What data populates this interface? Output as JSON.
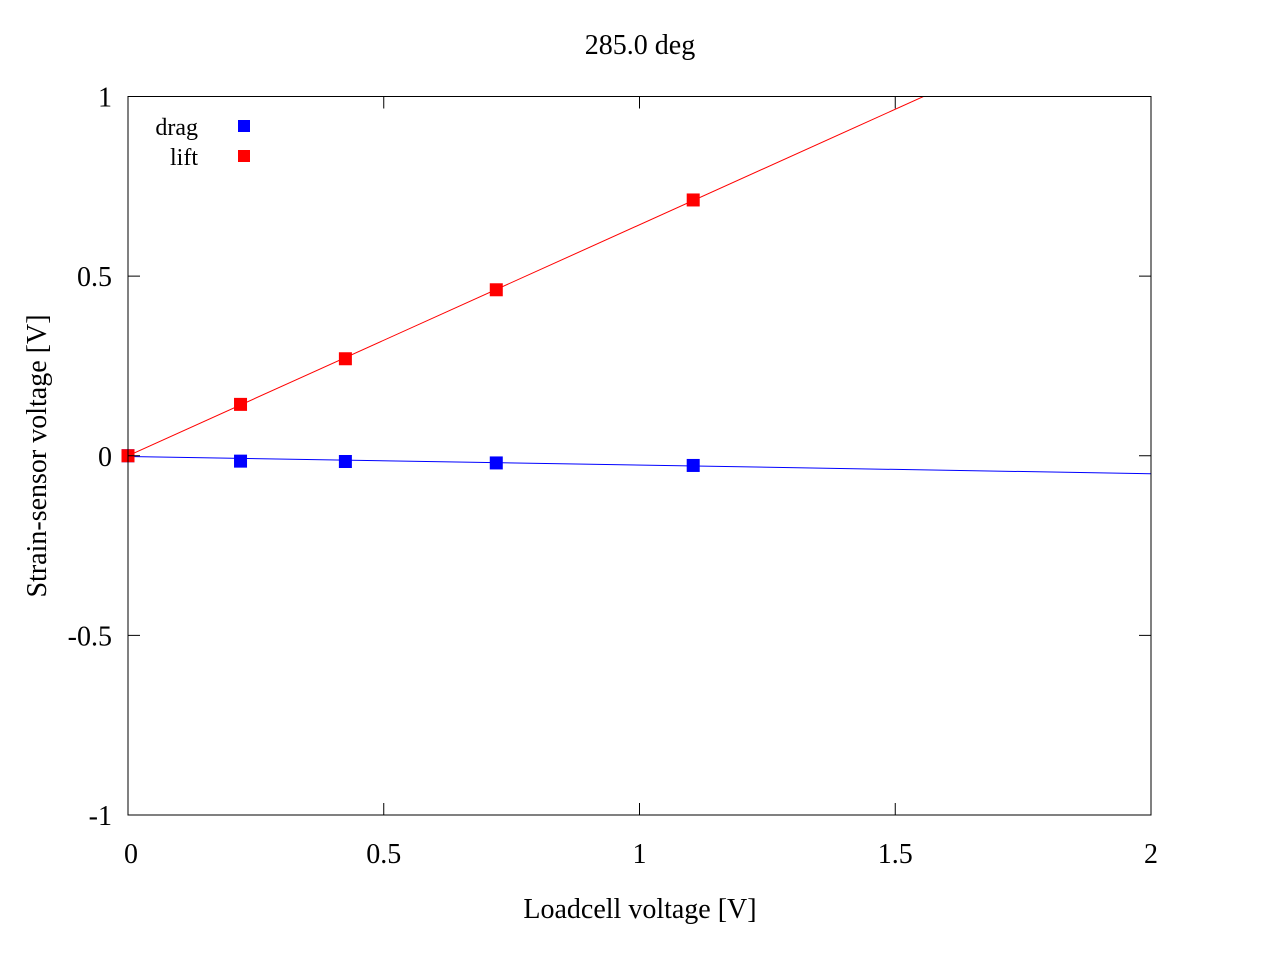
{
  "chart_data": {
    "type": "scatter",
    "title": "285.0 deg",
    "xlabel": "Loadcell voltage [V]",
    "ylabel": "Strain-sensor voltage [V]",
    "xlim": [
      0,
      2
    ],
    "ylim": [
      -1,
      1
    ],
    "x_ticks": [
      {
        "value": 0,
        "label": "0"
      },
      {
        "value": 0.5,
        "label": "0.5"
      },
      {
        "value": 1,
        "label": "1"
      },
      {
        "value": 1.5,
        "label": "1.5"
      },
      {
        "value": 2,
        "label": "2"
      }
    ],
    "y_ticks": [
      {
        "value": -1,
        "label": "-1"
      },
      {
        "value": -0.5,
        "label": "-0.5"
      },
      {
        "value": 0,
        "label": "0"
      },
      {
        "value": 0.5,
        "label": "0.5"
      },
      {
        "value": 1,
        "label": "1"
      }
    ],
    "grid": false,
    "legend_position": "top-left",
    "series": [
      {
        "name": "drag",
        "color": "#0000ff",
        "marker": "square",
        "x": [
          0.0,
          0.22,
          0.425,
          0.72,
          1.105
        ],
        "y": [
          0.0,
          -0.015,
          -0.016,
          -0.02,
          -0.027
        ],
        "fit_line": {
          "slope": -0.024,
          "intercept": -0.002
        }
      },
      {
        "name": "lift",
        "color": "#ff0000",
        "marker": "square",
        "x": [
          0.0,
          0.22,
          0.425,
          0.72,
          1.105
        ],
        "y": [
          0.0,
          0.143,
          0.27,
          0.462,
          0.712
        ],
        "fit_line": {
          "slope": 0.643,
          "intercept": 0.0
        }
      }
    ]
  }
}
